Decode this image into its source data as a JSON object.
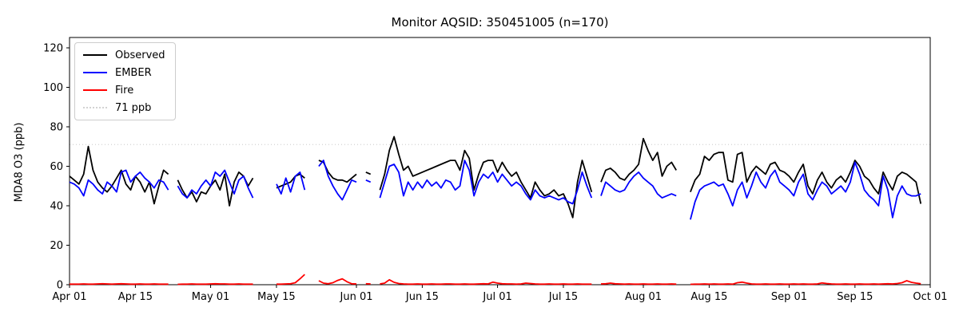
{
  "chart_data": {
    "type": "line",
    "title": "Monitor AQSID: 350451005 (n=170)",
    "xlabel": "",
    "ylabel": "MDA8 O3 (ppb)",
    "ylim": [
      0,
      125.25
    ],
    "yticks": [
      0,
      20,
      40,
      60,
      80,
      100,
      120
    ],
    "x_axis_days_range": [
      0,
      183
    ],
    "xticks": [
      {
        "day": 0,
        "label": "Apr 01"
      },
      {
        "day": 14,
        "label": "Apr 15"
      },
      {
        "day": 30,
        "label": "May 01"
      },
      {
        "day": 44,
        "label": "May 15"
      },
      {
        "day": 61,
        "label": "Jun 01"
      },
      {
        "day": 75,
        "label": "Jun 15"
      },
      {
        "day": 91,
        "label": "Jul 01"
      },
      {
        "day": 105,
        "label": "Jul 15"
      },
      {
        "day": 122,
        "label": "Aug 01"
      },
      {
        "day": 136,
        "label": "Aug 15"
      },
      {
        "day": 153,
        "label": "Sep 01"
      },
      {
        "day": 167,
        "label": "Sep 15"
      },
      {
        "day": 183,
        "label": "Oct 01"
      }
    ],
    "threshold": {
      "value": 71,
      "label": "71 ppb",
      "color": "#d3d3d3",
      "style": "dotted"
    },
    "legend_items": [
      {
        "label": "Observed",
        "color": "#000000",
        "style": "solid"
      },
      {
        "label": "EMBER",
        "color": "#0000ff",
        "style": "solid"
      },
      {
        "label": "Fire",
        "color": "#ff0000",
        "style": "solid"
      },
      {
        "label": "71 ppb",
        "color": "#d3d3d3",
        "style": "dotted"
      }
    ],
    "legend_position": "upper left",
    "grid": false,
    "n_points": 170,
    "segments": [
      {
        "start_day": 0,
        "observed": [
          55,
          53,
          51,
          56,
          70,
          58,
          52,
          49,
          47,
          50,
          54,
          58,
          51,
          48,
          55,
          52,
          47,
          52,
          41,
          50,
          58,
          56
        ],
        "ember": [
          52,
          51,
          49,
          45,
          53,
          51,
          48,
          46,
          52,
          50,
          47,
          57,
          58,
          52,
          55,
          57,
          54,
          52,
          49,
          53,
          52,
          48
        ],
        "fire": [
          0.3,
          0.3,
          0.3,
          0.4,
          0.3,
          0.3,
          0.4,
          0.5,
          0.4,
          0.3,
          0.4,
          0.5,
          0.4,
          0.3,
          0.3,
          0.4,
          0.3,
          0.3,
          0.4,
          0.3,
          0.3,
          0.3
        ]
      },
      {
        "start_day": 23,
        "observed": [
          53,
          48,
          44,
          47,
          42,
          47,
          46,
          50,
          53,
          48,
          56,
          40,
          52,
          57,
          55,
          50,
          54
        ],
        "ember": [
          50,
          46,
          44,
          48,
          46,
          50,
          53,
          50,
          57,
          55,
          58,
          52,
          46,
          53,
          55,
          49,
          44
        ],
        "fire": [
          0.2,
          0.3,
          0.3,
          0.4,
          0.3,
          0.3,
          0.3,
          0.4,
          0.5,
          0.4,
          0.4,
          0.3,
          0.3,
          0.4,
          0.3,
          0.3,
          0.3
        ]
      },
      {
        "start_day": 44,
        "observed": [
          49,
          50,
          51,
          52,
          55,
          56,
          54
        ],
        "ember": [
          51,
          46,
          54,
          47,
          55,
          57,
          48
        ],
        "fire": [
          0.3,
          0.3,
          0.4,
          0.5,
          1.0,
          3.0,
          5.2
        ]
      },
      {
        "start_day": 53,
        "observed": [
          63,
          62,
          57,
          54,
          53,
          53,
          52,
          54,
          56
        ],
        "ember": [
          60,
          63,
          55,
          50,
          46,
          43,
          48,
          53,
          52
        ],
        "fire": [
          2.0,
          0.8,
          0.5,
          1.0,
          2.2,
          3.0,
          1.5,
          0.5,
          0.4
        ]
      },
      {
        "start_day": 63,
        "observed": [
          57,
          56
        ],
        "ember": [
          53,
          52
        ],
        "fire": [
          0.5,
          0.4
        ]
      },
      {
        "start_day": 66,
        "observed": [
          48,
          56,
          68,
          75,
          66,
          58,
          60,
          55,
          56,
          57,
          58,
          59,
          60,
          61,
          62,
          63,
          63,
          58,
          68,
          64,
          48,
          56,
          62,
          63,
          63,
          57,
          62,
          58,
          55,
          57,
          52,
          48,
          44,
          52,
          48,
          45,
          46,
          48,
          45,
          46,
          41,
          34,
          52,
          63,
          55,
          47
        ],
        "ember": [
          44,
          52,
          60,
          61,
          57,
          45,
          52,
          48,
          52,
          49,
          53,
          50,
          52,
          49,
          53,
          52,
          48,
          50,
          63,
          58,
          45,
          52,
          56,
          54,
          57,
          52,
          56,
          53,
          50,
          52,
          50,
          46,
          43,
          48,
          45,
          44,
          45,
          44,
          43,
          44,
          42,
          41,
          48,
          57,
          50,
          44
        ],
        "fire": [
          0.4,
          0.8,
          2.5,
          1.2,
          0.6,
          0.4,
          0.3,
          0.3,
          0.4,
          0.3,
          0.3,
          0.4,
          0.3,
          0.3,
          0.4,
          0.4,
          0.3,
          0.3,
          0.4,
          0.3,
          0.3,
          0.4,
          0.5,
          0.4,
          1.3,
          0.8,
          0.5,
          0.4,
          0.4,
          0.3,
          0.4,
          0.8,
          0.6,
          0.4,
          0.3,
          0.3,
          0.4,
          0.3,
          0.3,
          0.4,
          0.3,
          0.3,
          0.4,
          0.3,
          0.3,
          0.3
        ]
      },
      {
        "start_day": 113,
        "observed": [
          52,
          58,
          59,
          57,
          54,
          53,
          56,
          58,
          61,
          74,
          68,
          63,
          67,
          55,
          60,
          62,
          58
        ],
        "ember": [
          45,
          52,
          50,
          48,
          47,
          48,
          52,
          55,
          57,
          54,
          52,
          50,
          46,
          44,
          45,
          46,
          45
        ],
        "fire": [
          0.4,
          0.5,
          0.8,
          0.5,
          0.4,
          0.3,
          0.4,
          0.3,
          0.3,
          0.4,
          0.3,
          0.3,
          0.4,
          0.3,
          0.3,
          0.4,
          0.3
        ]
      },
      {
        "start_day": 132,
        "observed": [
          47,
          53,
          56,
          65,
          63,
          66,
          67,
          67,
          53,
          52,
          66,
          67,
          52,
          57,
          60,
          58,
          56,
          61,
          62,
          58,
          57,
          55,
          52,
          57,
          61,
          50,
          46,
          53,
          57,
          52,
          49,
          53,
          55,
          52,
          57,
          63,
          60,
          55,
          53,
          49,
          46,
          57,
          52,
          48,
          55,
          57,
          56,
          54,
          52,
          41
        ],
        "ember": [
          33,
          42,
          48,
          50,
          51,
          52,
          50,
          51,
          46,
          40,
          48,
          52,
          44,
          50,
          57,
          52,
          49,
          55,
          58,
          52,
          50,
          48,
          45,
          52,
          56,
          46,
          43,
          48,
          52,
          50,
          46,
          48,
          50,
          47,
          52,
          62,
          56,
          48,
          45,
          43,
          40,
          55,
          48,
          34,
          45,
          50,
          46,
          45,
          45,
          46
        ],
        "fire": [
          0.2,
          0.3,
          0.3,
          0.4,
          0.3,
          0.4,
          0.3,
          0.3,
          0.4,
          0.3,
          1.0,
          1.3,
          0.8,
          0.4,
          0.3,
          0.3,
          0.4,
          0.3,
          0.3,
          0.4,
          0.3,
          0.3,
          0.4,
          0.3,
          0.4,
          0.3,
          0.3,
          0.4,
          0.9,
          0.6,
          0.4,
          0.3,
          0.3,
          0.4,
          0.3,
          0.3,
          0.4,
          0.3,
          0.3,
          0.4,
          0.3,
          0.4,
          0.5,
          0.4,
          0.6,
          1.0,
          2.0,
          1.2,
          0.8,
          0.5
        ]
      }
    ]
  }
}
